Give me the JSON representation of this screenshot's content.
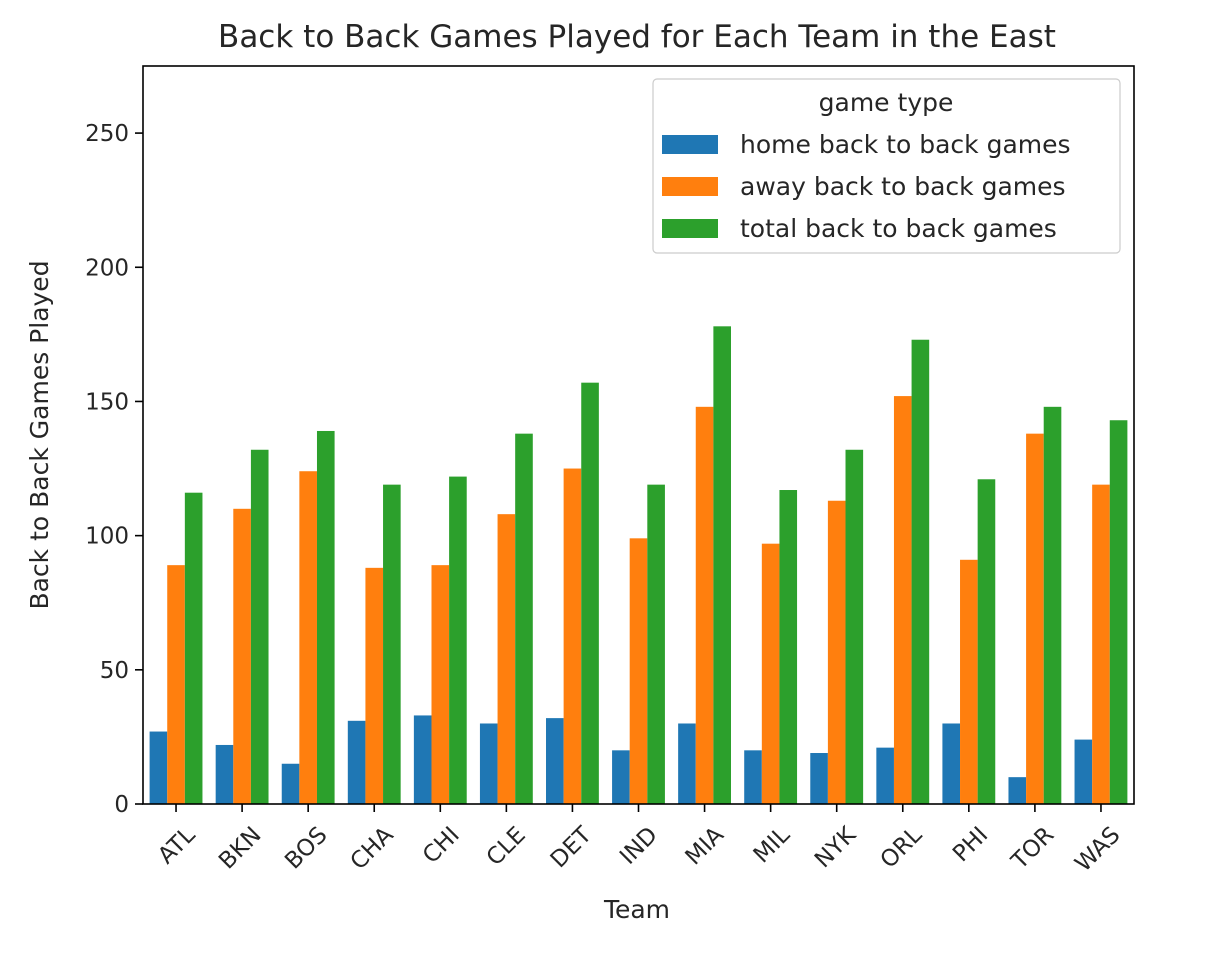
{
  "chart_data": {
    "type": "bar",
    "title": "Back to Back Games Played for Each Team in the East",
    "xlabel": "Team",
    "ylabel": "Back to Back Games Played",
    "ylim": [
      0,
      275
    ],
    "yticks": [
      0,
      50,
      100,
      150,
      200,
      250
    ],
    "grid": false,
    "legend": {
      "title": "game type",
      "placement": "top-right"
    },
    "categories": [
      "ATL",
      "BKN",
      "BOS",
      "CHA",
      "CHI",
      "CLE",
      "DET",
      "IND",
      "MIA",
      "MIL",
      "NYK",
      "ORL",
      "PHI",
      "TOR",
      "WAS"
    ],
    "series": [
      {
        "name": "home back to back games",
        "color": "#1f77b4",
        "values": [
          27,
          22,
          15,
          31,
          33,
          30,
          32,
          20,
          30,
          20,
          19,
          21,
          30,
          10,
          24
        ]
      },
      {
        "name": "away back to back games",
        "color": "#ff7f0e",
        "values": [
          89,
          110,
          124,
          88,
          89,
          108,
          125,
          99,
          148,
          97,
          113,
          152,
          91,
          138,
          119
        ]
      },
      {
        "name": "total back to back games",
        "color": "#2ca02c",
        "values": [
          116,
          132,
          139,
          119,
          122,
          138,
          157,
          119,
          178,
          117,
          132,
          173,
          121,
          148,
          143
        ]
      }
    ]
  }
}
